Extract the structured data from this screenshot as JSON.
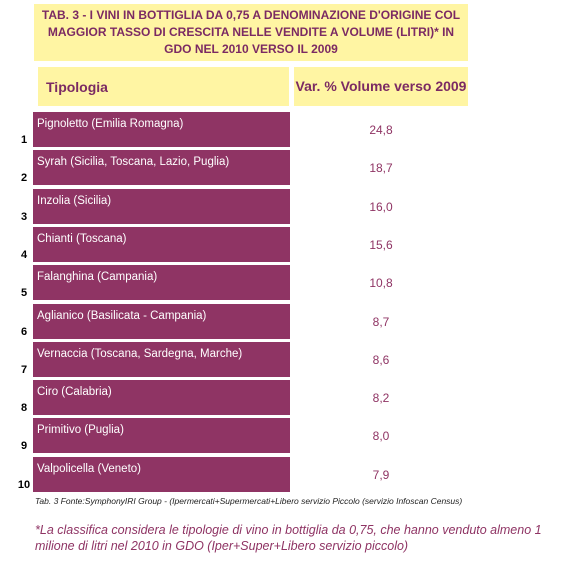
{
  "title": "TAB. 3 - I VINI IN BOTTIGLIA DA 0,75 A  DENOMINAZIONE D'ORIGINE COL MAGGIOR TASSO DI CRESCITA NELLE VENDITE A VOLUME (LITRI)*  IN GDO NEL 2010 VERSO IL 2009",
  "header": {
    "tipologia": "Tipologia",
    "variation": "Var. % Volume verso 2009"
  },
  "rows": [
    {
      "rank": "1",
      "label": "Pignoletto (Emilia Romagna)",
      "value": "24,8"
    },
    {
      "rank": "2",
      "label": "Syrah (Sicilia, Toscana, Lazio, Puglia)",
      "value": "18,7"
    },
    {
      "rank": "3",
      "label": "Inzolia (Sicilia)",
      "value": "16,0"
    },
    {
      "rank": "4",
      "label": "Chianti (Toscana)",
      "value": "15,6"
    },
    {
      "rank": "5",
      "label": "Falanghina (Campania)",
      "value": "10,8"
    },
    {
      "rank": "6",
      "label": "Aglianico (Basilicata - Campania)",
      "value": "8,7"
    },
    {
      "rank": "7",
      "label": "Vernaccia (Toscana, Sardegna, Marche)",
      "value": "8,6"
    },
    {
      "rank": "8",
      "label": "Ciro (Calabria)",
      "value": "8,2"
    },
    {
      "rank": "9",
      "label": "Primitivo (Puglia)",
      "value": "8,0"
    },
    {
      "rank": "10",
      "label": "Valpolicella (Veneto)",
      "value": "7,9"
    }
  ],
  "source": "Tab. 3 Fonte:SymphonyIRI Group - (Ipermercati+Supermercati+Libero servizio Piccolo (servizio Infoscan Census)",
  "footnote": "*La classifica considera le tipologie di vino in bottiglia da 0,75, che hanno venduto almeno 1 milione di litri nel 2010 in GDO (Iper+Super+Libero servizio piccolo)",
  "colors": {
    "header_bg": "#fff5a3",
    "accent": "#8f3464",
    "title_text": "#7b2a63"
  }
}
